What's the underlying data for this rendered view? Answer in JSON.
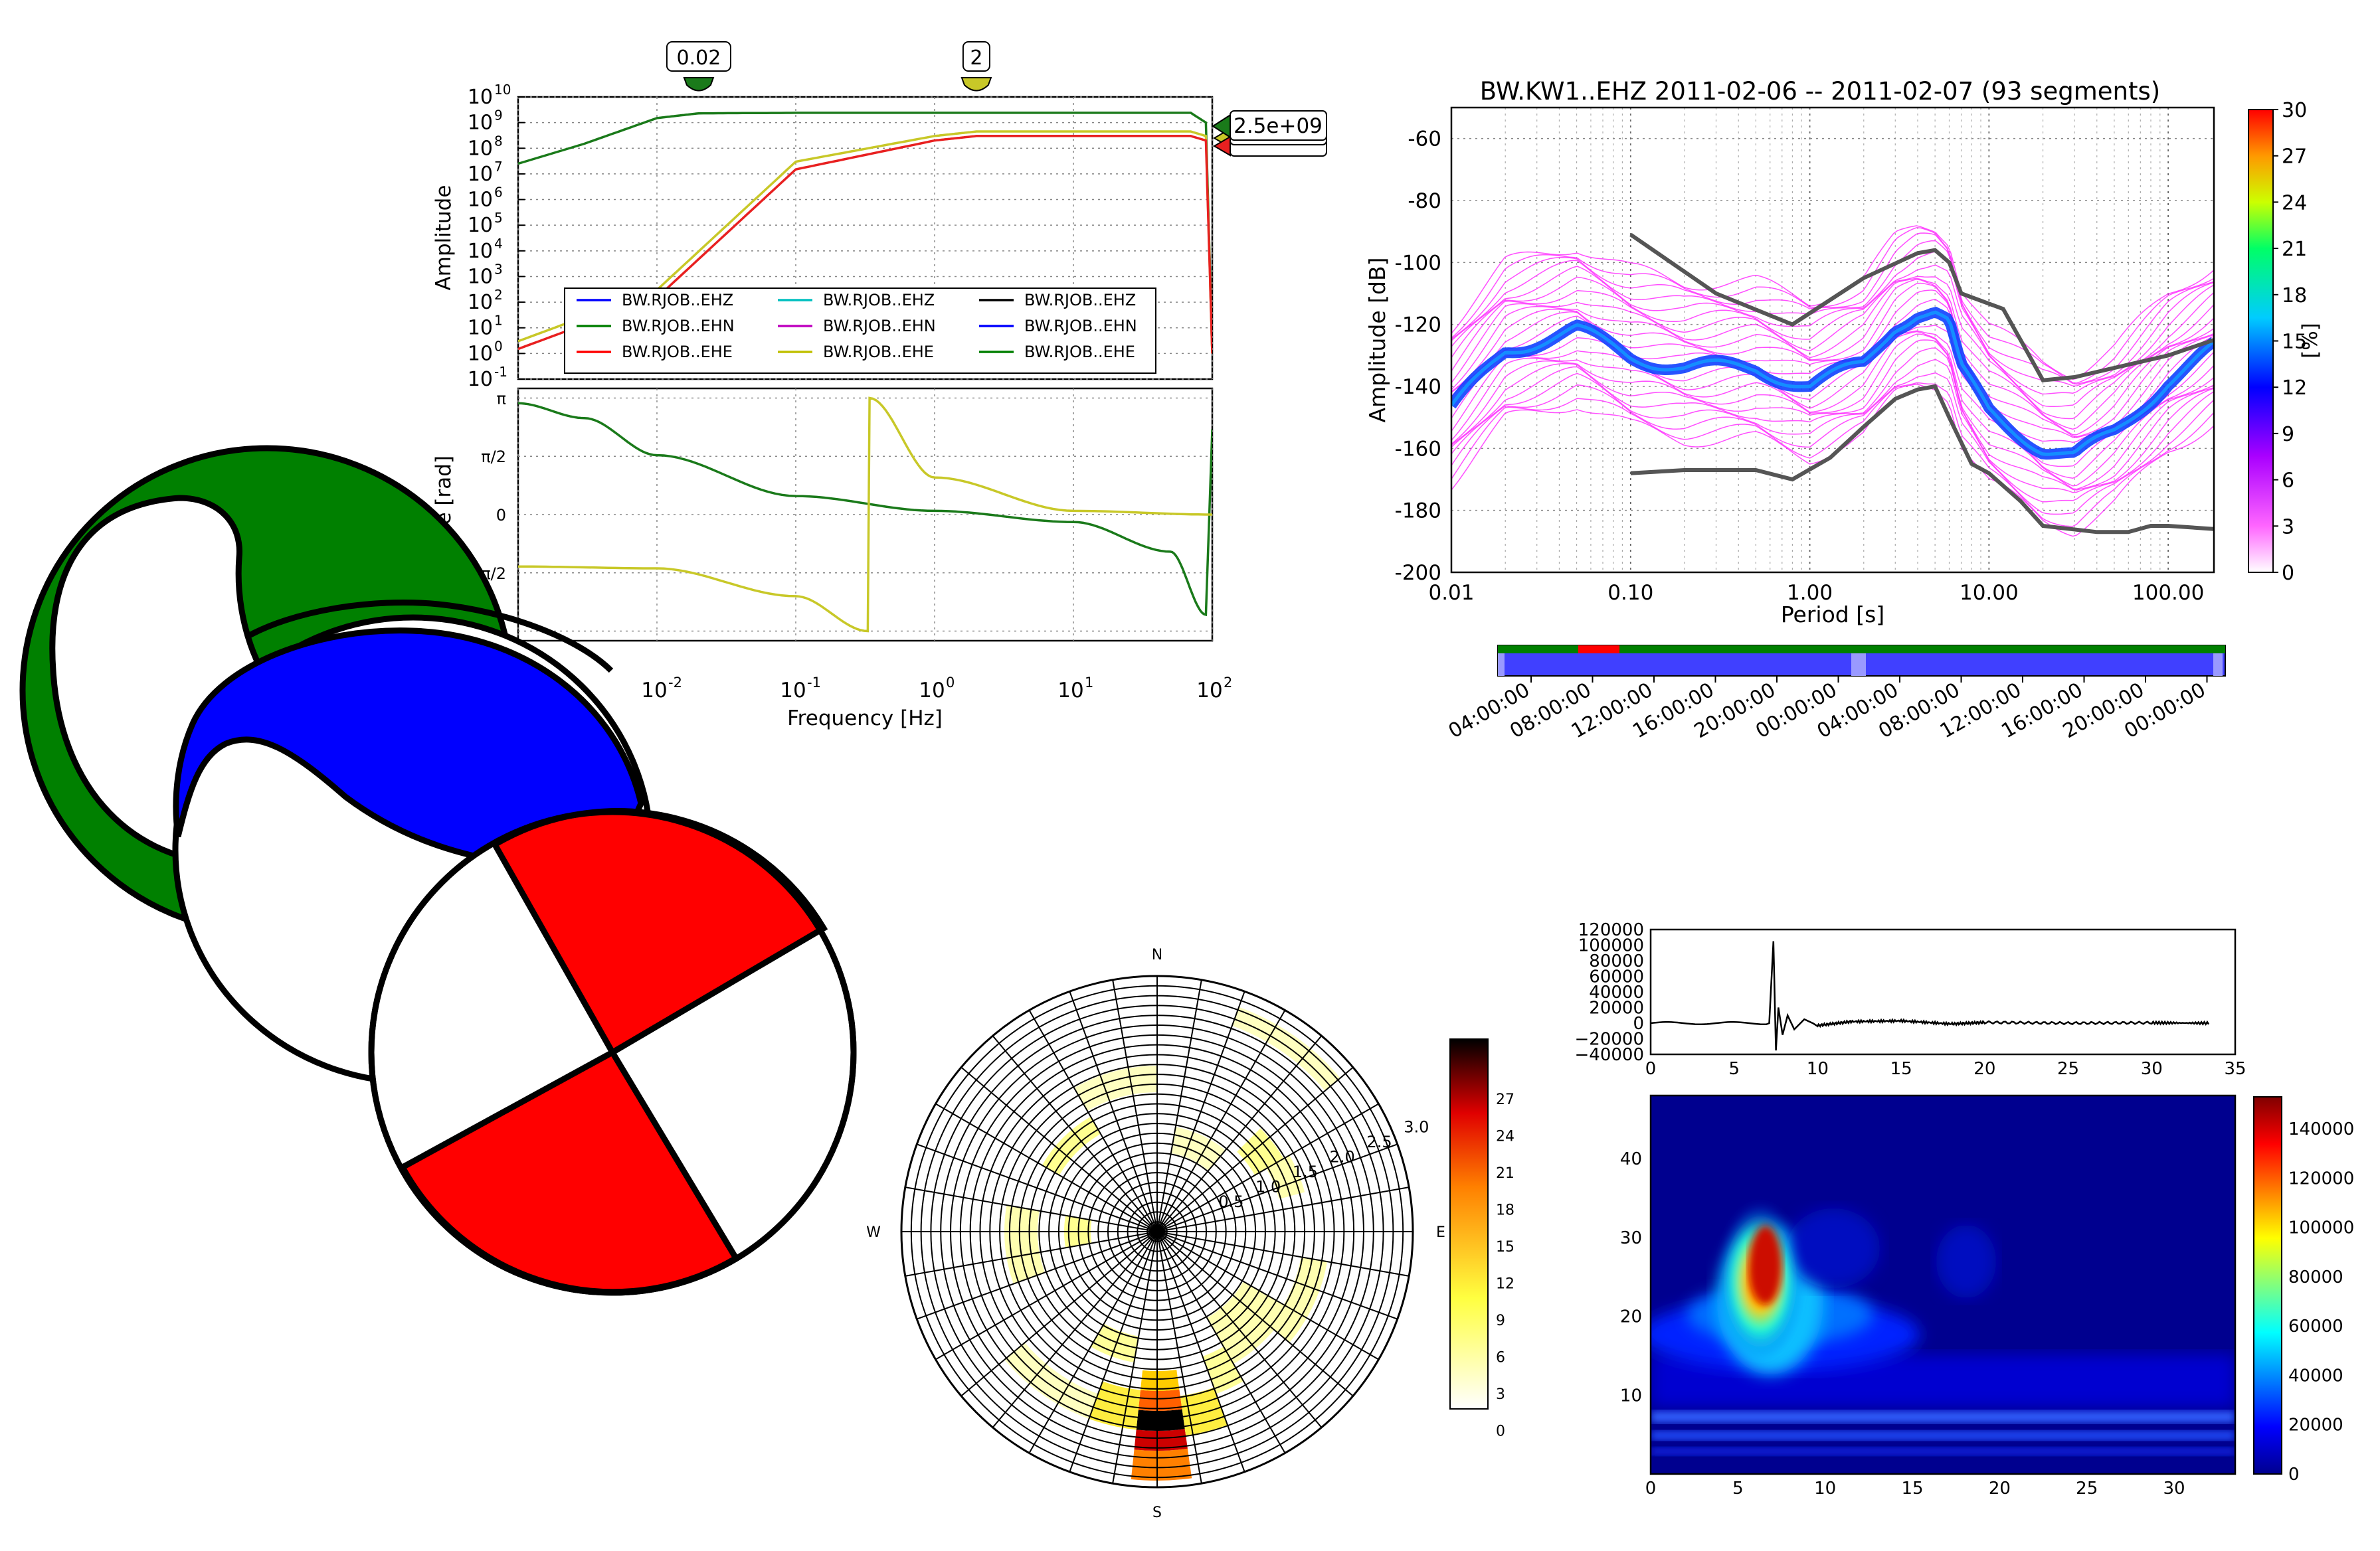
{
  "chart_data": [
    {
      "type": "line",
      "panel": "bode-amplitude",
      "ylabel": "Amplitude",
      "x_scale": "log",
      "y_scale": "log",
      "xlim": [
        0.001,
        100
      ],
      "ylim": [
        0.1,
        10000000000
      ],
      "ytick_exponents": [
        "10",
        "9",
        "8",
        "7",
        "6",
        "5",
        "4",
        "3",
        "2",
        "1",
        "0",
        "-1"
      ],
      "markers": [
        {
          "label": "0.02",
          "x": 0.02,
          "color": "#1a7a1a"
        },
        {
          "label": "2",
          "x": 2,
          "color": "#c8c828"
        }
      ],
      "right_labels": [
        "2.5e+09"
      ],
      "legend": {
        "placement": "lower-center",
        "entries": [
          {
            "label": "BW.RJOB..EHZ",
            "color": "#0000ff"
          },
          {
            "label": "BW.RJOB..EHN",
            "color": "#007f00"
          },
          {
            "label": "BW.RJOB..EHE",
            "color": "#ff0000"
          },
          {
            "label": "BW.RJOB..EHZ",
            "color": "#00bfbf"
          },
          {
            "label": "BW.RJOB..EHN",
            "color": "#bf00bf"
          },
          {
            "label": "BW.RJOB..EHE",
            "color": "#bfbf00"
          },
          {
            "label": "BW.RJOB..EHZ",
            "color": "#000000"
          },
          {
            "label": "BW.RJOB..EHN",
            "color": "#0000ff"
          },
          {
            "label": "BW.RJOB..EHE",
            "color": "#007f00"
          }
        ]
      },
      "series": [
        {
          "color": "#1a7a1a",
          "x": [
            0.001,
            0.003,
            0.01,
            0.02,
            0.1,
            1,
            10,
            70,
            90,
            100
          ],
          "y": [
            25000000,
            150000000,
            1500000000,
            2300000000,
            2400000000,
            2400000000,
            2400000000,
            2400000000,
            1000000000,
            1
          ]
        },
        {
          "color": "#c8c828",
          "x": [
            0.001,
            0.01,
            0.1,
            1,
            2,
            10,
            70,
            90,
            100
          ],
          "y": [
            3,
            300,
            30000000,
            300000000,
            450000000,
            450000000,
            450000000,
            300000000,
            1
          ]
        },
        {
          "color": "#e82020",
          "x": [
            0.001,
            0.01,
            0.1,
            1,
            2,
            10,
            70,
            90,
            100
          ],
          "y": [
            1.5,
            150,
            15000000,
            200000000,
            300000000,
            300000000,
            300000000,
            200000000,
            1
          ]
        }
      ]
    },
    {
      "type": "line",
      "panel": "bode-phase",
      "xlabel": "Frequency [Hz]",
      "ylabel": "Phase [rad]",
      "x_scale": "log",
      "xlim": [
        0.001,
        100
      ],
      "xtick_exponents": [
        "-2",
        "-1",
        "0",
        "1",
        "2"
      ],
      "ytick_labels": [
        "π",
        "π/2",
        "0",
        "π/2"
      ],
      "series": [
        {
          "color": "#1a7a1a",
          "x": [
            0.001,
            0.003,
            0.01,
            0.1,
            1,
            10,
            50,
            90,
            100
          ],
          "y": [
            3.0,
            2.6,
            1.6,
            0.5,
            0.1,
            -0.2,
            -1.0,
            -2.7,
            2.3
          ]
        },
        {
          "color": "#c8c828",
          "x": [
            0.001,
            0.01,
            0.1,
            0.33,
            0.34,
            1,
            10,
            100
          ],
          "y": [
            -1.4,
            -1.45,
            -2.2,
            -3.14,
            3.14,
            1.0,
            0.1,
            0.0
          ]
        }
      ]
    },
    {
      "type": "heatmap",
      "panel": "ppsd",
      "title": "BW.KW1..EHZ   2011-02-06 -- 2011-02-07  (93 segments)",
      "xlabel": "Period [s]",
      "ylabel": "Amplitude [dB]",
      "x_scale": "log",
      "xlim": [
        0.01,
        180
      ],
      "ylim": [
        -200,
        -50
      ],
      "xtick_labels": [
        "0.01",
        "0.10",
        "1.00",
        "10.00",
        "100.00"
      ],
      "ytick_labels": [
        "-60",
        "-80",
        "-100",
        "-120",
        "-140",
        "-160",
        "-180",
        "-200"
      ],
      "colorbar": {
        "label": "[%]",
        "ticks": [
          "30",
          "27",
          "24",
          "21",
          "18",
          "15",
          "12",
          "9",
          "6",
          "3",
          "0"
        ]
      },
      "noise_models": {
        "high": {
          "x": [
            0.1,
            0.3,
            0.8,
            2,
            4,
            5,
            6,
            7,
            12,
            15,
            20,
            30,
            100,
            180
          ],
          "y": [
            -91,
            -110,
            -120,
            -105,
            -97,
            -96,
            -100,
            -110,
            -115,
            -125,
            -138,
            -137,
            -130,
            -125
          ]
        },
        "low": {
          "x": [
            0.1,
            0.2,
            0.5,
            0.8,
            1.3,
            2,
            3,
            4,
            5,
            6,
            8,
            10,
            15,
            20,
            40,
            60,
            80,
            100,
            180
          ],
          "y": [
            -168,
            -167,
            -167,
            -170,
            -163,
            -153,
            -144,
            -141,
            -140,
            -150,
            -165,
            -168,
            -177,
            -185,
            -187,
            -187,
            -185,
            -185,
            -186
          ]
        },
        "mode": {
          "x": [
            0.01,
            0.02,
            0.05,
            0.1,
            0.2,
            0.5,
            1,
            2,
            3,
            4,
            5,
            6,
            7,
            10,
            15,
            20,
            30,
            50,
            100,
            180
          ],
          "y": [
            -148,
            -128,
            -122,
            -130,
            -134,
            -134,
            -140,
            -133,
            -120,
            -116,
            -116,
            -120,
            -135,
            -148,
            -155,
            -160,
            -163,
            -155,
            -138,
            -128
          ]
        }
      },
      "timeline": {
        "tick_labels": [
          "04:00:00",
          "08:00:00",
          "12:00:00",
          "16:00:00",
          "20:00:00",
          "00:00:00",
          "04:00:00",
          "08:00:00",
          "12:00:00",
          "16:00:00",
          "20:00:00",
          "00:00:00"
        ]
      }
    },
    {
      "type": "heatmap",
      "panel": "polar-histogram",
      "direction_labels": [
        "N",
        "E",
        "S",
        "W"
      ],
      "radial_tick_labels": [
        "0.5",
        "1.0",
        "1.5",
        "2.0",
        "2.5",
        "3.0"
      ],
      "colorbar": {
        "ticks": [
          "27",
          "24",
          "21",
          "18",
          "15",
          "12",
          "9",
          "6",
          "3",
          "0"
        ]
      }
    },
    {
      "type": "line",
      "panel": "seismogram",
      "xlim": [
        0,
        35
      ],
      "ylim": [
        -40000,
        120000
      ],
      "xtick_labels": [
        "0",
        "5",
        "10",
        "15",
        "20",
        "25",
        "30",
        "35"
      ],
      "ytick_labels": [
        "120000",
        "100000",
        "80000",
        "60000",
        "40000",
        "20000",
        "0",
        "−20000",
        "−40000"
      ],
      "series": [
        {
          "color": "#000000",
          "x": [
            0,
            7.1,
            7.35,
            7.5,
            7.65,
            7.9,
            8.2,
            8.6,
            9.2,
            10,
            12,
            15,
            18,
            20,
            25,
            30,
            33.5
          ],
          "y": [
            0,
            0,
            105000,
            -35000,
            20000,
            -15000,
            10000,
            -8000,
            5000,
            -3000,
            2000,
            3000,
            -1000,
            1000,
            0,
            500,
            0
          ]
        }
      ]
    },
    {
      "type": "heatmap",
      "panel": "scalogram",
      "xlim": [
        0,
        33.5
      ],
      "ylim": [
        0,
        48
      ],
      "xtick_labels": [
        "0",
        "5",
        "10",
        "15",
        "20",
        "25",
        "30"
      ],
      "ytick_labels": [
        "10",
        "20",
        "30",
        "40"
      ],
      "colorbar": {
        "ticks": [
          "140000",
          "120000",
          "100000",
          "80000",
          "60000",
          "40000",
          "20000",
          "0"
        ]
      }
    }
  ],
  "beachballs": [
    {
      "fill": "#008000"
    },
    {
      "fill": "#0000ff"
    },
    {
      "fill": "#ff0000"
    }
  ]
}
